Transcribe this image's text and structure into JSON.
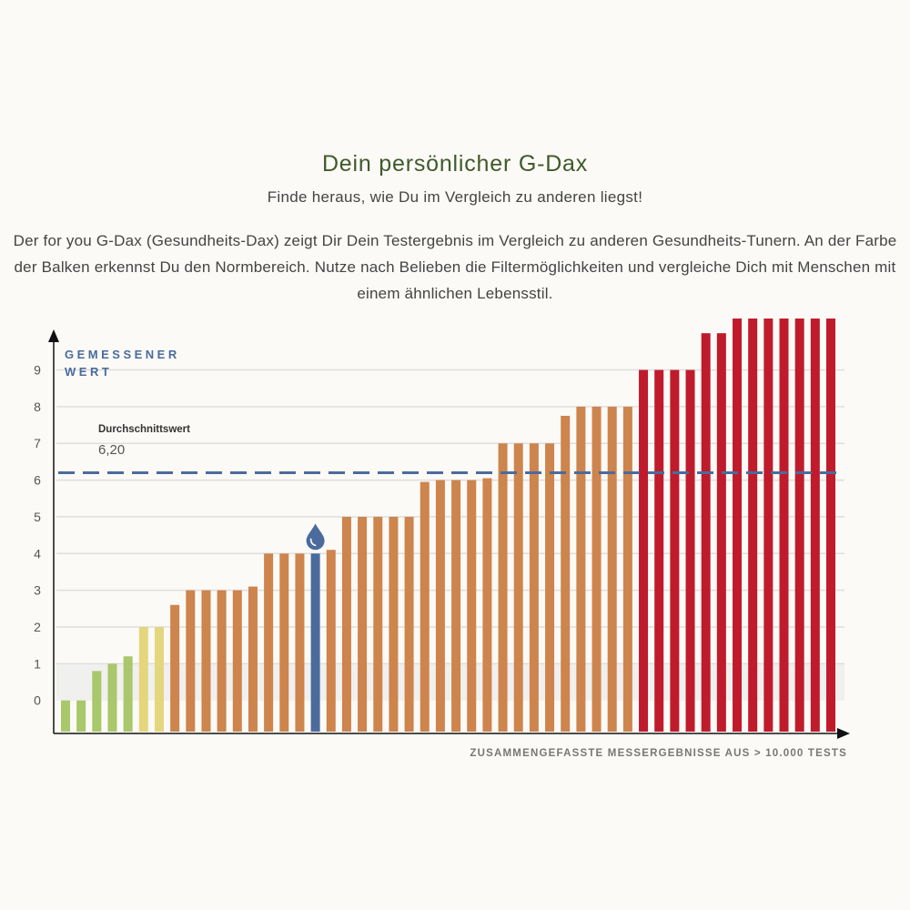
{
  "header": {
    "title": "Dein persönlicher G-Dax",
    "subtitle": "Finde heraus, wie Du im Vergleich zu anderen liegst!",
    "description": "Der for you G-Dax (Gesundheits-Dax) zeigt Dir Dein Testergebnis im Vergleich zu anderen Gesundheits-Tunern. An der Farbe der Balken erkennst Du den Normbereich. Nutze nach Belieben die Filtermöglichkeiten und vergleiche Dich mit Menschen mit einem ähnlichen Lebensstil."
  },
  "chart_data": {
    "type": "bar",
    "ylabel_line1": "GEMESSENER",
    "ylabel_line2": "WERT",
    "xlabel": "ZUSAMMENGEFASSTE MESSERGEBNISSE AUS > 10.000 TESTS",
    "ylim": [
      -0.9,
      10.5
    ],
    "yticks": [
      "0",
      "1",
      "2",
      "3",
      "4",
      "5",
      "6",
      "7",
      "8",
      "9"
    ],
    "grid": true,
    "average": {
      "label": "Durchschnittswert",
      "value_text": "6,20",
      "value": 6.2
    },
    "highlight_index": 16,
    "highlight_icon": "water-drop-icon",
    "colors": {
      "green": "#a9c76b",
      "yellow": "#e4d67c",
      "orange": "#cd844d",
      "red": "#bf1b2c",
      "highlight": "#4a6b9c",
      "average_line": "#4a6b9c"
    },
    "values": [
      0,
      0,
      0.8,
      1.0,
      1.2,
      2.0,
      2.0,
      2.6,
      3.0,
      3.0,
      3.0,
      3.0,
      3.1,
      4.0,
      4.0,
      4.0,
      4.0,
      4.1,
      5.0,
      5.0,
      5.0,
      5.0,
      5.0,
      5.95,
      6.0,
      6.0,
      6.0,
      6.05,
      7.0,
      7.0,
      7.0,
      7.0,
      7.75,
      8.0,
      8.0,
      8.0,
      8.0,
      9.0,
      9.0,
      9.0,
      9.0,
      10.0,
      10.0,
      10.4,
      10.4,
      10.4,
      10.4,
      10.4,
      10.4,
      10.4
    ],
    "bar_colors": [
      "green",
      "green",
      "green",
      "green",
      "green",
      "yellow",
      "yellow",
      "orange",
      "orange",
      "orange",
      "orange",
      "orange",
      "orange",
      "orange",
      "orange",
      "orange",
      "highlight",
      "orange",
      "orange",
      "orange",
      "orange",
      "orange",
      "orange",
      "orange",
      "orange",
      "orange",
      "orange",
      "orange",
      "orange",
      "orange",
      "orange",
      "orange",
      "orange",
      "orange",
      "orange",
      "orange",
      "orange",
      "red",
      "red",
      "red",
      "red",
      "red",
      "red",
      "red",
      "red",
      "red",
      "red",
      "red",
      "red",
      "red"
    ]
  }
}
